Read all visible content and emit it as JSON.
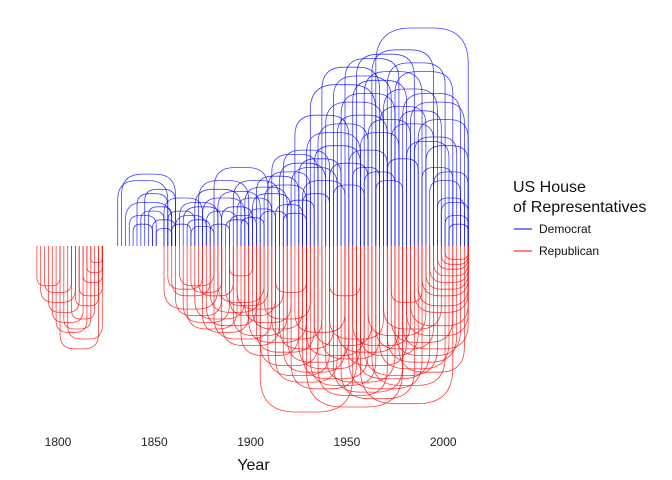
{
  "chart_data": {
    "type": "line",
    "title": "",
    "xlabel": "Year",
    "ylabel": "",
    "xlim": [
      1787,
      2016
    ],
    "x_ticks": [
      1800,
      1850,
      1900,
      1950,
      2000
    ],
    "grid": false,
    "legend_position": "right",
    "legend": {
      "title_lines": [
        "US House",
        "of Representatives"
      ],
      "entries": [
        "Democrat",
        "Republican"
      ]
    },
    "colors": {
      "Democrat": "#0000ff",
      "Republican": "#ff0000"
    },
    "series": [
      {
        "name": "Democrat",
        "direction": "up",
        "arcs": [
          {
            "start": 1831,
            "end": 1857,
            "h": 0.3
          },
          {
            "start": 1833,
            "end": 1861,
            "h": 0.33
          },
          {
            "start": 1835,
            "end": 1859,
            "h": 0.2
          },
          {
            "start": 1837,
            "end": 1851,
            "h": 0.14
          },
          {
            "start": 1839,
            "end": 1849,
            "h": 0.1
          },
          {
            "start": 1841,
            "end": 1857,
            "h": 0.24
          },
          {
            "start": 1843,
            "end": 1855,
            "h": 0.16
          },
          {
            "start": 1845,
            "end": 1861,
            "h": 0.26
          },
          {
            "start": 1847,
            "end": 1859,
            "h": 0.18
          },
          {
            "start": 1849,
            "end": 1861,
            "h": 0.12
          },
          {
            "start": 1851,
            "end": 1859,
            "h": 0.08
          },
          {
            "start": 1855,
            "end": 1875,
            "h": 0.22
          },
          {
            "start": 1857,
            "end": 1871,
            "h": 0.16
          },
          {
            "start": 1859,
            "end": 1869,
            "h": 0.1
          },
          {
            "start": 1861,
            "end": 1877,
            "h": 0.14
          },
          {
            "start": 1863,
            "end": 1883,
            "h": 0.2
          },
          {
            "start": 1865,
            "end": 1885,
            "h": 0.18
          },
          {
            "start": 1867,
            "end": 1879,
            "h": 0.12
          },
          {
            "start": 1869,
            "end": 1881,
            "h": 0.09
          },
          {
            "start": 1871,
            "end": 1895,
            "h": 0.26
          },
          {
            "start": 1873,
            "end": 1899,
            "h": 0.3
          },
          {
            "start": 1875,
            "end": 1897,
            "h": 0.22
          },
          {
            "start": 1877,
            "end": 1893,
            "h": 0.16
          },
          {
            "start": 1879,
            "end": 1889,
            "h": 0.1
          },
          {
            "start": 1881,
            "end": 1909,
            "h": 0.36
          },
          {
            "start": 1883,
            "end": 1905,
            "h": 0.25
          },
          {
            "start": 1885,
            "end": 1901,
            "h": 0.18
          },
          {
            "start": 1887,
            "end": 1899,
            "h": 0.12
          },
          {
            "start": 1889,
            "end": 1903,
            "h": 0.14
          },
          {
            "start": 1891,
            "end": 1915,
            "h": 0.3
          },
          {
            "start": 1893,
            "end": 1911,
            "h": 0.22
          },
          {
            "start": 1895,
            "end": 1907,
            "h": 0.13
          },
          {
            "start": 1897,
            "end": 1919,
            "h": 0.27
          },
          {
            "start": 1899,
            "end": 1913,
            "h": 0.17
          },
          {
            "start": 1901,
            "end": 1921,
            "h": 0.24
          },
          {
            "start": 1903,
            "end": 1925,
            "h": 0.32
          },
          {
            "start": 1905,
            "end": 1919,
            "h": 0.16
          },
          {
            "start": 1907,
            "end": 1929,
            "h": 0.28
          },
          {
            "start": 1909,
            "end": 1931,
            "h": 0.34
          },
          {
            "start": 1911,
            "end": 1935,
            "h": 0.42
          },
          {
            "start": 1913,
            "end": 1927,
            "h": 0.19
          },
          {
            "start": 1915,
            "end": 1939,
            "h": 0.38
          },
          {
            "start": 1917,
            "end": 1941,
            "h": 0.44
          },
          {
            "start": 1919,
            "end": 1933,
            "h": 0.21
          },
          {
            "start": 1921,
            "end": 1945,
            "h": 0.36
          },
          {
            "start": 1923,
            "end": 1951,
            "h": 0.6
          },
          {
            "start": 1925,
            "end": 1947,
            "h": 0.4
          },
          {
            "start": 1927,
            "end": 1941,
            "h": 0.24
          },
          {
            "start": 1929,
            "end": 1957,
            "h": 0.52
          },
          {
            "start": 1931,
            "end": 1965,
            "h": 0.74
          },
          {
            "start": 1933,
            "end": 1957,
            "h": 0.46
          },
          {
            "start": 1935,
            "end": 1961,
            "h": 0.56
          },
          {
            "start": 1937,
            "end": 1967,
            "h": 0.82
          },
          {
            "start": 1939,
            "end": 1969,
            "h": 0.66
          },
          {
            "start": 1941,
            "end": 1961,
            "h": 0.38
          },
          {
            "start": 1943,
            "end": 1973,
            "h": 0.78
          },
          {
            "start": 1945,
            "end": 1971,
            "h": 0.6
          },
          {
            "start": 1947,
            "end": 1975,
            "h": 0.7
          },
          {
            "start": 1949,
            "end": 1977,
            "h": 0.86
          },
          {
            "start": 1951,
            "end": 1971,
            "h": 0.44
          },
          {
            "start": 1953,
            "end": 1981,
            "h": 0.76
          },
          {
            "start": 1955,
            "end": 1985,
            "h": 0.88
          },
          {
            "start": 1957,
            "end": 1977,
            "h": 0.52
          },
          {
            "start": 1959,
            "end": 1989,
            "h": 0.8
          },
          {
            "start": 1961,
            "end": 1983,
            "h": 0.58
          },
          {
            "start": 1963,
            "end": 1995,
            "h": 0.9
          },
          {
            "start": 1965,
            "end": 2013,
            "h": 1.0
          },
          {
            "start": 1967,
            "end": 1991,
            "h": 0.64
          },
          {
            "start": 1969,
            "end": 1997,
            "h": 0.72
          },
          {
            "start": 1971,
            "end": 2001,
            "h": 0.84
          },
          {
            "start": 1973,
            "end": 1995,
            "h": 0.56
          },
          {
            "start": 1975,
            "end": 2005,
            "h": 0.8
          },
          {
            "start": 1977,
            "end": 1999,
            "h": 0.62
          },
          {
            "start": 1979,
            "end": 2009,
            "h": 0.7
          },
          {
            "start": 1981,
            "end": 2003,
            "h": 0.48
          },
          {
            "start": 1983,
            "end": 2011,
            "h": 0.66
          },
          {
            "start": 1985,
            "end": 2007,
            "h": 0.5
          },
          {
            "start": 1987,
            "end": 2013,
            "h": 0.58
          },
          {
            "start": 1989,
            "end": 2005,
            "h": 0.36
          },
          {
            "start": 1991,
            "end": 2013,
            "h": 0.46
          },
          {
            "start": 1993,
            "end": 2009,
            "h": 0.3
          },
          {
            "start": 1995,
            "end": 2013,
            "h": 0.34
          },
          {
            "start": 1997,
            "end": 2011,
            "h": 0.22
          },
          {
            "start": 1999,
            "end": 2013,
            "h": 0.2
          },
          {
            "start": 2001,
            "end": 2013,
            "h": 0.14
          },
          {
            "start": 2003,
            "end": 2013,
            "h": 0.1
          },
          {
            "start": 1927,
            "end": 1949,
            "h": 0.3
          },
          {
            "start": 1943,
            "end": 1959,
            "h": 0.28
          },
          {
            "start": 1959,
            "end": 1975,
            "h": 0.34
          },
          {
            "start": 1971,
            "end": 1987,
            "h": 0.4
          },
          {
            "start": 1917,
            "end": 1929,
            "h": 0.15
          },
          {
            "start": 1953,
            "end": 1967,
            "h": 0.36
          },
          {
            "start": 1965,
            "end": 1979,
            "h": 0.3
          }
        ]
      },
      {
        "name": "Republican",
        "direction": "down",
        "arcs": [
          {
            "start": 1789,
            "end": 1801,
            "h": 0.24
          },
          {
            "start": 1791,
            "end": 1809,
            "h": 0.34
          },
          {
            "start": 1793,
            "end": 1807,
            "h": 0.28
          },
          {
            "start": 1795,
            "end": 1811,
            "h": 0.4
          },
          {
            "start": 1797,
            "end": 1813,
            "h": 0.46
          },
          {
            "start": 1799,
            "end": 1815,
            "h": 0.52
          },
          {
            "start": 1801,
            "end": 1821,
            "h": 0.62
          },
          {
            "start": 1803,
            "end": 1817,
            "h": 0.5
          },
          {
            "start": 1805,
            "end": 1823,
            "h": 0.56
          },
          {
            "start": 1807,
            "end": 1819,
            "h": 0.44
          },
          {
            "start": 1809,
            "end": 1821,
            "h": 0.36
          },
          {
            "start": 1811,
            "end": 1823,
            "h": 0.3
          },
          {
            "start": 1813,
            "end": 1823,
            "h": 0.22
          },
          {
            "start": 1815,
            "end": 1823,
            "h": 0.16
          },
          {
            "start": 1817,
            "end": 1823,
            "h": 0.1
          },
          {
            "start": 1855,
            "end": 1883,
            "h": 0.38
          },
          {
            "start": 1857,
            "end": 1875,
            "h": 0.26
          },
          {
            "start": 1859,
            "end": 1879,
            "h": 0.3
          },
          {
            "start": 1861,
            "end": 1885,
            "h": 0.42
          },
          {
            "start": 1863,
            "end": 1881,
            "h": 0.24
          },
          {
            "start": 1865,
            "end": 1889,
            "h": 0.46
          },
          {
            "start": 1867,
            "end": 1893,
            "h": 0.5
          },
          {
            "start": 1869,
            "end": 1885,
            "h": 0.28
          },
          {
            "start": 1871,
            "end": 1897,
            "h": 0.44
          },
          {
            "start": 1873,
            "end": 1891,
            "h": 0.3
          },
          {
            "start": 1875,
            "end": 1899,
            "h": 0.52
          },
          {
            "start": 1877,
            "end": 1903,
            "h": 0.48
          },
          {
            "start": 1879,
            "end": 1905,
            "h": 0.4
          },
          {
            "start": 1881,
            "end": 1911,
            "h": 0.56
          },
          {
            "start": 1883,
            "end": 1907,
            "h": 0.34
          },
          {
            "start": 1885,
            "end": 1915,
            "h": 0.6
          },
          {
            "start": 1887,
            "end": 1909,
            "h": 0.36
          },
          {
            "start": 1889,
            "end": 1913,
            "h": 0.42
          },
          {
            "start": 1891,
            "end": 1919,
            "h": 0.54
          },
          {
            "start": 1893,
            "end": 1917,
            "h": 0.38
          },
          {
            "start": 1895,
            "end": 1925,
            "h": 0.66
          },
          {
            "start": 1897,
            "end": 1921,
            "h": 0.46
          },
          {
            "start": 1899,
            "end": 1929,
            "h": 0.58
          },
          {
            "start": 1901,
            "end": 1927,
            "h": 0.5
          },
          {
            "start": 1903,
            "end": 1933,
            "h": 0.64
          },
          {
            "start": 1905,
            "end": 1935,
            "h": 0.72
          },
          {
            "start": 1907,
            "end": 1931,
            "h": 0.44
          },
          {
            "start": 1909,
            "end": 1941,
            "h": 0.78
          },
          {
            "start": 1911,
            "end": 1937,
            "h": 0.56
          },
          {
            "start": 1913,
            "end": 1945,
            "h": 0.82
          },
          {
            "start": 1915,
            "end": 1943,
            "h": 0.62
          },
          {
            "start": 1917,
            "end": 1949,
            "h": 0.76
          },
          {
            "start": 1919,
            "end": 1951,
            "h": 0.7
          },
          {
            "start": 1921,
            "end": 1955,
            "h": 0.86
          },
          {
            "start": 1923,
            "end": 1949,
            "h": 0.52
          },
          {
            "start": 1925,
            "end": 1957,
            "h": 0.74
          },
          {
            "start": 1927,
            "end": 1961,
            "h": 0.8
          },
          {
            "start": 1929,
            "end": 1959,
            "h": 0.66
          },
          {
            "start": 1931,
            "end": 1965,
            "h": 0.84
          },
          {
            "start": 1933,
            "end": 1963,
            "h": 0.6
          },
          {
            "start": 1935,
            "end": 1971,
            "h": 0.9
          },
          {
            "start": 1937,
            "end": 1967,
            "h": 0.68
          },
          {
            "start": 1939,
            "end": 1975,
            "h": 0.82
          },
          {
            "start": 1941,
            "end": 1969,
            "h": 0.56
          },
          {
            "start": 1943,
            "end": 1979,
            "h": 0.88
          },
          {
            "start": 1945,
            "end": 1977,
            "h": 0.64
          },
          {
            "start": 1947,
            "end": 1985,
            "h": 0.92
          },
          {
            "start": 1949,
            "end": 1981,
            "h": 0.72
          },
          {
            "start": 1951,
            "end": 1989,
            "h": 0.86
          },
          {
            "start": 1953,
            "end": 1983,
            "h": 0.6
          },
          {
            "start": 1955,
            "end": 1993,
            "h": 0.8
          },
          {
            "start": 1957,
            "end": 1987,
            "h": 0.66
          },
          {
            "start": 1959,
            "end": 1997,
            "h": 0.78
          },
          {
            "start": 1961,
            "end": 1991,
            "h": 0.54
          },
          {
            "start": 1963,
            "end": 2001,
            "h": 0.84
          },
          {
            "start": 1965,
            "end": 1995,
            "h": 0.62
          },
          {
            "start": 1967,
            "end": 2003,
            "h": 0.74
          },
          {
            "start": 1969,
            "end": 1999,
            "h": 0.5
          },
          {
            "start": 1971,
            "end": 2007,
            "h": 0.7
          },
          {
            "start": 1973,
            "end": 2005,
            "h": 0.58
          },
          {
            "start": 1975,
            "end": 2009,
            "h": 0.66
          },
          {
            "start": 1977,
            "end": 2011,
            "h": 0.76
          },
          {
            "start": 1979,
            "end": 2013,
            "h": 0.62
          },
          {
            "start": 1981,
            "end": 2013,
            "h": 0.54
          },
          {
            "start": 1983,
            "end": 2013,
            "h": 0.48
          },
          {
            "start": 1985,
            "end": 2013,
            "h": 0.4
          },
          {
            "start": 1987,
            "end": 2013,
            "h": 0.36
          },
          {
            "start": 1989,
            "end": 2013,
            "h": 0.3
          },
          {
            "start": 1991,
            "end": 2013,
            "h": 0.26
          },
          {
            "start": 1993,
            "end": 2013,
            "h": 0.22
          },
          {
            "start": 1995,
            "end": 2013,
            "h": 0.18
          },
          {
            "start": 1997,
            "end": 2013,
            "h": 0.14
          },
          {
            "start": 1999,
            "end": 2013,
            "h": 0.11
          },
          {
            "start": 2001,
            "end": 2013,
            "h": 0.08
          },
          {
            "start": 1905,
            "end": 1953,
            "h": 1.0
          },
          {
            "start": 1929,
            "end": 1979,
            "h": 0.97
          },
          {
            "start": 1957,
            "end": 2005,
            "h": 0.95
          },
          {
            "start": 1941,
            "end": 1957,
            "h": 0.3
          },
          {
            "start": 1973,
            "end": 1989,
            "h": 0.34
          },
          {
            "start": 1913,
            "end": 1929,
            "h": 0.28
          },
          {
            "start": 1889,
            "end": 1901,
            "h": 0.18
          }
        ]
      }
    ]
  }
}
